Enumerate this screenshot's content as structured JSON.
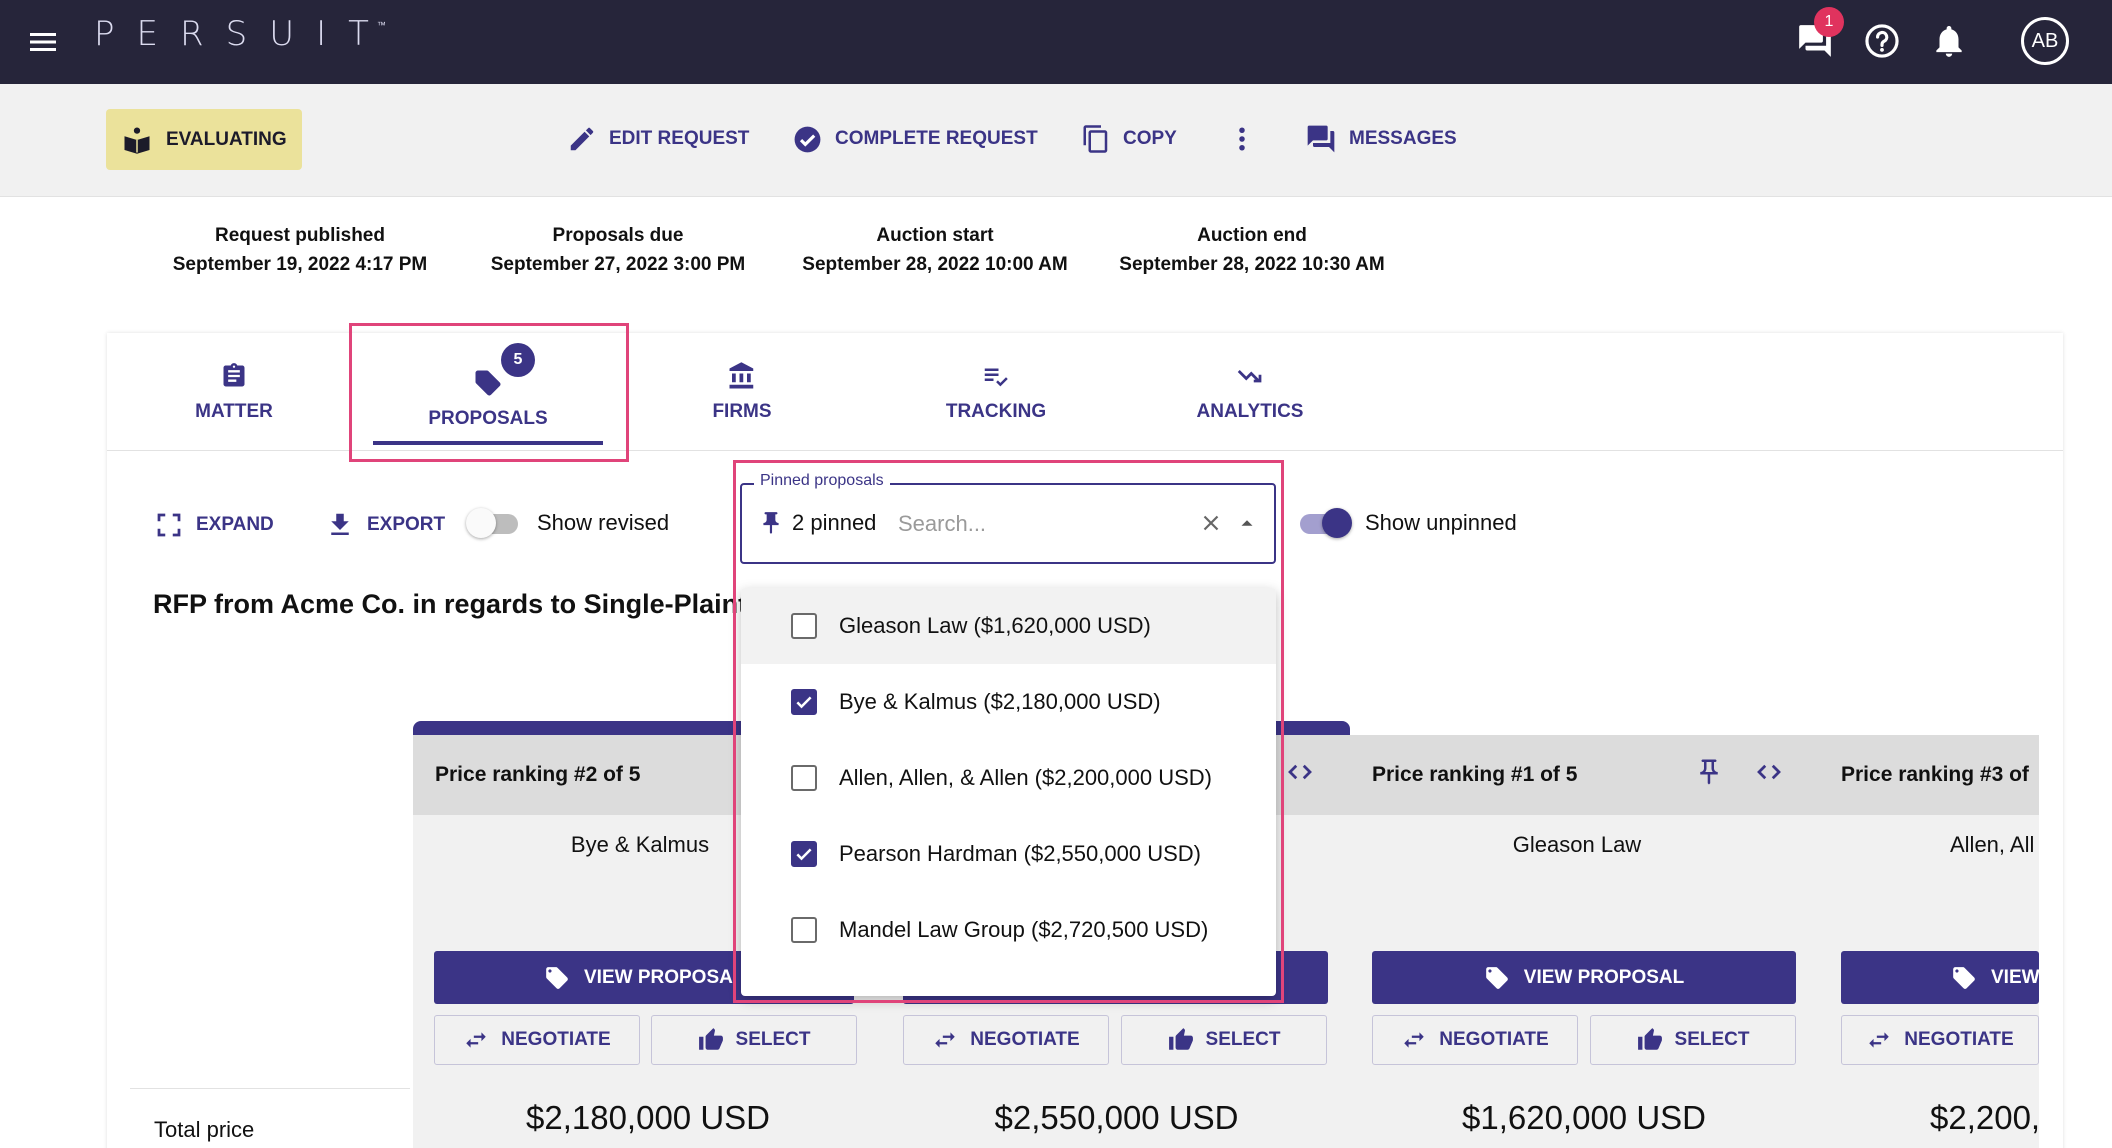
{
  "app": {
    "logo": "PERSUIT",
    "logo_tm": "™",
    "messages_badge": "1",
    "avatar_initials": "AB"
  },
  "actionbar": {
    "status": "EVALUATING",
    "edit_request": "EDIT REQUEST",
    "complete_request": "COMPLETE REQUEST",
    "copy": "COPY",
    "messages": "MESSAGES"
  },
  "dates": [
    {
      "label": "Request published",
      "value": "September 19, 2022 4:17 PM"
    },
    {
      "label": "Proposals due",
      "value": "September 27, 2022 3:00 PM"
    },
    {
      "label": "Auction start",
      "value": "September 28, 2022 10:00 AM"
    },
    {
      "label": "Auction end",
      "value": "September 28, 2022 10:30 AM"
    }
  ],
  "tabs": [
    {
      "label": "MATTER",
      "icon": "clipboard-icon"
    },
    {
      "label": "PROPOSALS",
      "icon": "tag-icon",
      "badge": "5",
      "active": true
    },
    {
      "label": "FIRMS",
      "icon": "bank-icon"
    },
    {
      "label": "TRACKING",
      "icon": "checklist-icon"
    },
    {
      "label": "ANALYTICS",
      "icon": "trending-down-icon"
    }
  ],
  "toolbar": {
    "expand": "EXPAND",
    "export": "EXPORT",
    "show_revised": "Show revised",
    "show_revised_on": false,
    "show_unpinned": "Show unpinned",
    "show_unpinned_on": true
  },
  "pinned": {
    "legend": "Pinned proposals",
    "chip": "2 pinned",
    "placeholder": "Search...",
    "options": [
      {
        "label": "Gleason Law ($1,620,000 USD)",
        "checked": false
      },
      {
        "label": "Bye & Kalmus ($2,180,000 USD)",
        "checked": true
      },
      {
        "label": "Allen, Allen, & Allen ($2,200,000 USD)",
        "checked": false
      },
      {
        "label": "Pearson Hardman ($2,550,000 USD)",
        "checked": true
      },
      {
        "label": "Mandel Law Group ($2,720,500 USD)",
        "checked": false
      }
    ]
  },
  "rfp_title": "RFP from Acme Co. in regards to Single-Plaint",
  "row_labels": {
    "total_price": "Total price"
  },
  "proposals": [
    {
      "ranking": "Price ranking #2 of 5",
      "firm": "Bye & Kalmus",
      "view": "VIEW PROPOSA",
      "negotiate": "NEGOTIATE",
      "select": "SELECT",
      "price": "$2,180,000 USD"
    },
    {
      "ranking": "",
      "firm": "",
      "view": "",
      "negotiate": "NEGOTIATE",
      "select": "SELECT",
      "price": "$2,550,000 USD"
    },
    {
      "ranking": "Price ranking #1 of 5",
      "firm": "Gleason Law",
      "view": "VIEW PROPOSAL",
      "negotiate": "NEGOTIATE",
      "select": "SELECT",
      "price": "$1,620,000 USD"
    },
    {
      "ranking": "Price ranking #3 of",
      "firm": "Allen, All",
      "view": "VIEW",
      "negotiate": "NEGOTIATE",
      "select": "",
      "price": "$2,200,"
    }
  ],
  "colors": {
    "primary": "#3b3486",
    "topbar": "#26253a",
    "status_chip": "#ebe29b",
    "highlight": "#e0447a",
    "badge": "#e0335e"
  }
}
